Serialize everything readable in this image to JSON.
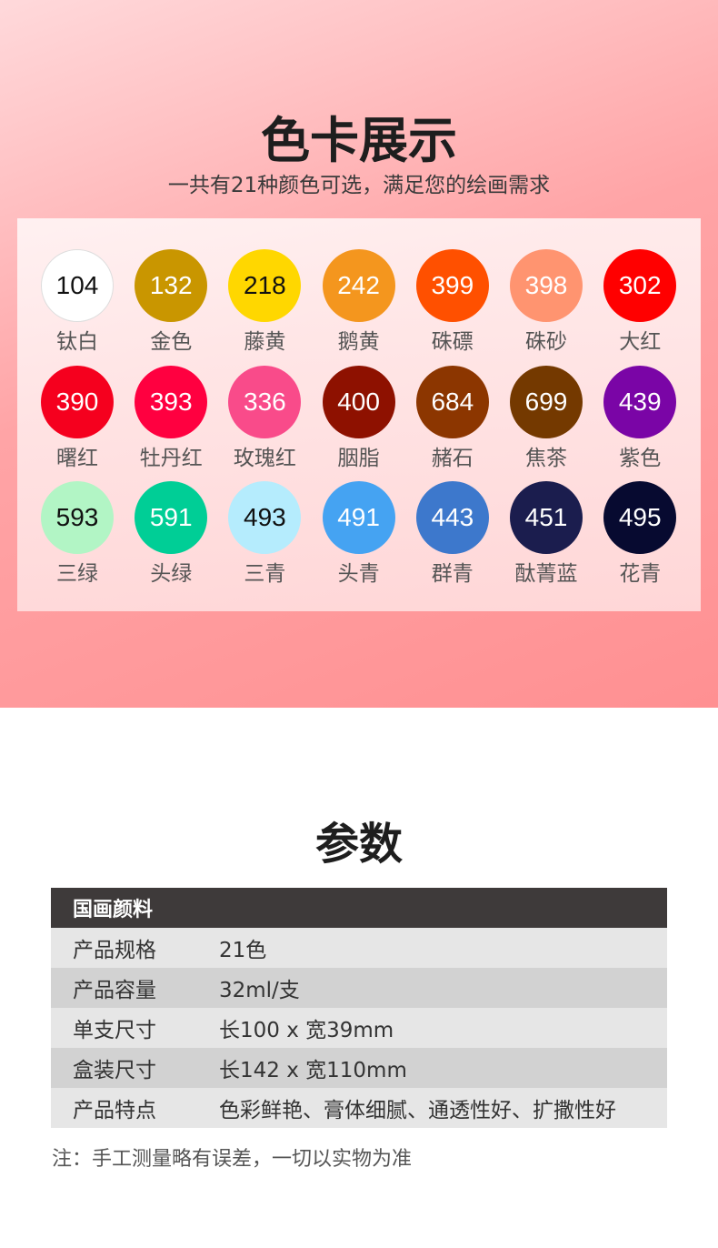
{
  "color_card": {
    "title": "色卡展示",
    "subtitle": "一共有21种颜色可选，满足您的绘画需求",
    "swatches": [
      {
        "code": "104",
        "name": "钛白",
        "color": "#ffffff",
        "text": "#111111"
      },
      {
        "code": "132",
        "name": "金色",
        "color": "#c99600",
        "text": "#ffffff"
      },
      {
        "code": "218",
        "name": "藤黄",
        "color": "#ffd700",
        "text": "#111111"
      },
      {
        "code": "242",
        "name": "鹅黄",
        "color": "#f4961e",
        "text": "#ffffff"
      },
      {
        "code": "399",
        "name": "硃磦",
        "color": "#ff5000",
        "text": "#ffffff"
      },
      {
        "code": "398",
        "name": "硃砂",
        "color": "#ff9470",
        "text": "#ffffff"
      },
      {
        "code": "302",
        "name": "大红",
        "color": "#ff0000",
        "text": "#ffffff"
      },
      {
        "code": "390",
        "name": "曙红",
        "color": "#f5001e",
        "text": "#ffffff"
      },
      {
        "code": "393",
        "name": "牡丹红",
        "color": "#ff0040",
        "text": "#ffffff"
      },
      {
        "code": "336",
        "name": "玫瑰红",
        "color": "#f94b8a",
        "text": "#ffffff"
      },
      {
        "code": "400",
        "name": "胭脂",
        "color": "#8e1100",
        "text": "#ffffff"
      },
      {
        "code": "684",
        "name": "赭石",
        "color": "#8c3600",
        "text": "#ffffff"
      },
      {
        "code": "699",
        "name": "焦茶",
        "color": "#743900",
        "text": "#ffffff"
      },
      {
        "code": "439",
        "name": "紫色",
        "color": "#7a05a6",
        "text": "#ffffff"
      },
      {
        "code": "593",
        "name": "三绿",
        "color": "#b2f5c5",
        "text": "#111111"
      },
      {
        "code": "591",
        "name": "头绿",
        "color": "#00ce96",
        "text": "#ffffff"
      },
      {
        "code": "493",
        "name": "三青",
        "color": "#b5ecfd",
        "text": "#111111"
      },
      {
        "code": "491",
        "name": "头青",
        "color": "#45a3f2",
        "text": "#ffffff"
      },
      {
        "code": "443",
        "name": "群青",
        "color": "#3d78cc",
        "text": "#ffffff"
      },
      {
        "code": "451",
        "name": "酞菁蓝",
        "color": "#1b1d4e",
        "text": "#ffffff"
      },
      {
        "code": "495",
        "name": "花青",
        "color": "#070a30",
        "text": "#ffffff"
      }
    ]
  },
  "params": {
    "title": "参数",
    "header": "国画颜料",
    "rows": [
      {
        "key": "产品规格",
        "value": "21色"
      },
      {
        "key": "产品容量",
        "value": "32ml/支"
      },
      {
        "key": "单支尺寸",
        "value": "长100 x 宽39mm"
      },
      {
        "key": "盒装尺寸",
        "value": "长142 x 宽110mm"
      },
      {
        "key": "产品特点",
        "value": "色彩鲜艳、膏体细腻、通透性好、扩撒性好"
      }
    ],
    "note": "注：手工测量略有误差，一切以实物为准"
  }
}
